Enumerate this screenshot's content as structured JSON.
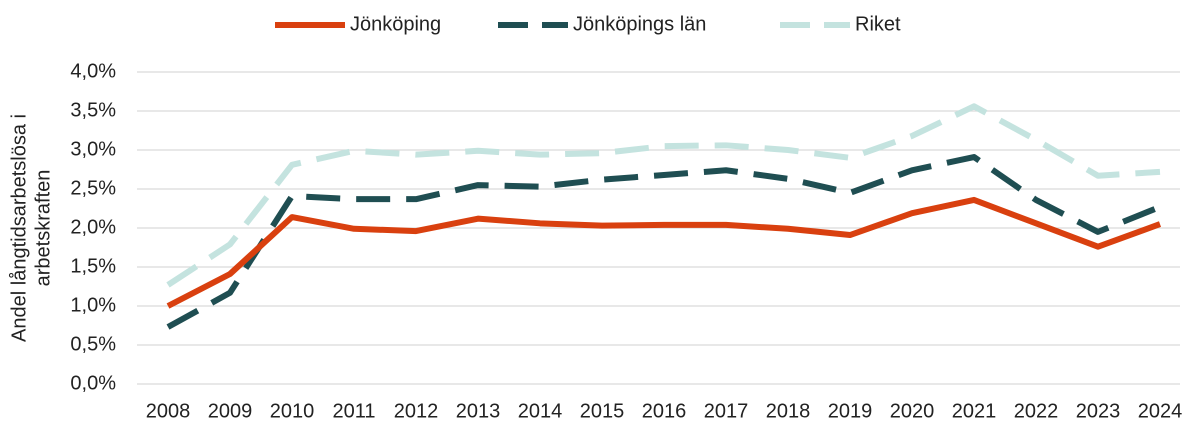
{
  "chart_data": {
    "type": "line",
    "ylabel": [
      "Andel långtidsarbetslösa i",
      "arbetskraften"
    ],
    "categories": [
      "2008",
      "2009",
      "2010",
      "2011",
      "2012",
      "2013",
      "2014",
      "2015",
      "2016",
      "2017",
      "2018",
      "2019",
      "2020",
      "2021",
      "2022",
      "2023",
      "2024"
    ],
    "series": [
      {
        "name": "Jönköping",
        "color": "#d9400f",
        "dash": "solid",
        "values": [
          1.0,
          1.41,
          2.14,
          1.99,
          1.96,
          2.12,
          2.06,
          2.03,
          2.04,
          2.04,
          1.99,
          1.91,
          2.19,
          2.36,
          2.06,
          1.76,
          2.05
        ]
      },
      {
        "name": "Jönköpings län",
        "color": "#1f4e52",
        "dash": "dashed",
        "values": [
          0.73,
          1.17,
          2.41,
          2.37,
          2.37,
          2.55,
          2.53,
          2.62,
          2.68,
          2.74,
          2.63,
          2.45,
          2.74,
          2.91,
          2.36,
          1.95,
          2.27
        ]
      },
      {
        "name": "Riket",
        "color": "#c4e3df",
        "dash": "dashed",
        "values": [
          1.27,
          1.79,
          2.81,
          2.99,
          2.94,
          2.99,
          2.94,
          2.96,
          3.05,
          3.06,
          3.0,
          2.9,
          3.18,
          3.56,
          3.13,
          2.67,
          2.72
        ]
      }
    ],
    "ylim": [
      0,
      4
    ],
    "yticks": [
      {
        "value": 0,
        "label": "0,0%"
      },
      {
        "value": 0.5,
        "label": "0,5%"
      },
      {
        "value": 1,
        "label": "1,0%"
      },
      {
        "value": 1.5,
        "label": "1,5%"
      },
      {
        "value": 2,
        "label": "2,0%"
      },
      {
        "value": 2.5,
        "label": "2,5%"
      },
      {
        "value": 3,
        "label": "3,0%"
      },
      {
        "value": 3.5,
        "label": "3,5%"
      },
      {
        "value": 4,
        "label": "4,0%"
      }
    ],
    "grid": true,
    "legend": "top"
  }
}
